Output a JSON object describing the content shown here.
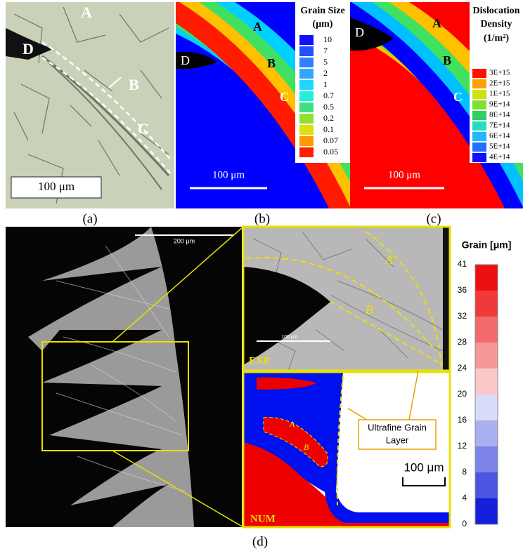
{
  "panel_a": {
    "labels": [
      "A",
      "B",
      "C",
      "D"
    ],
    "scale_bar": "100 μm",
    "caption": "(a)"
  },
  "panel_b": {
    "legend_title": [
      "Grain Size",
      "(μm)"
    ],
    "legend": [
      "10",
      "7",
      "5",
      "2",
      "1",
      "0.7",
      "0.5",
      "0.2",
      "0.1",
      "0.07",
      "0.05"
    ],
    "labels": [
      "A",
      "B",
      "C",
      "D"
    ],
    "scale_bar": "100 μm",
    "caption": "(b)"
  },
  "panel_c": {
    "legend_title": [
      "Dislocation",
      "Density",
      "(1/m²)"
    ],
    "legend": [
      "3E+15",
      "2E+15",
      "1E+15",
      "9E+14",
      "8E+14",
      "7E+14",
      "6E+14",
      "5E+14",
      "4E+14"
    ],
    "labels": [
      "A",
      "B",
      "C",
      "D"
    ],
    "scale_bar": "100 μm",
    "caption": "(c)"
  },
  "panel_d": {
    "sem_scale_bar": "200 μm",
    "exp": {
      "tag": "EXP",
      "labels": [
        "A",
        "B"
      ],
      "scale_bar": "100 μm"
    },
    "num": {
      "tag": "NUM",
      "labels": [
        "A",
        "B"
      ],
      "callout": [
        "Ultrafine Grain",
        "Layer"
      ],
      "scale_bar": "100 μm"
    },
    "colorbar_title": "Grain [μm]",
    "colorbar_ticks": [
      "41",
      "36",
      "32",
      "28",
      "24",
      "20",
      "16",
      "12",
      "8",
      "4",
      "0"
    ],
    "caption": "(d)"
  }
}
